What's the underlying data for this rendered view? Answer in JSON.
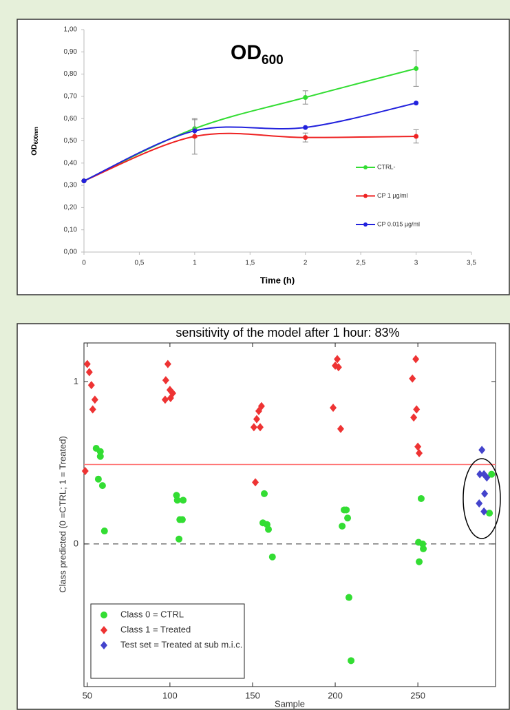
{
  "chart_data": [
    {
      "type": "line",
      "title": "OD",
      "title_subscript": "600",
      "ylabel": "OD",
      "ylabel_subscript": "600nm",
      "xlabel": "Time (h)",
      "x": [
        0,
        1,
        2,
        3
      ],
      "series": [
        {
          "name": "CTRL-",
          "color": "#33dd33",
          "values": [
            0.32,
            0.555,
            0.695,
            0.825
          ],
          "errors": [
            0,
            0.04,
            0.03,
            0.08
          ]
        },
        {
          "name": "CP 1 µg/ml",
          "color": "#ee2222",
          "values": [
            0.32,
            0.52,
            0.515,
            0.52
          ],
          "errors": [
            0,
            0.08,
            0.02,
            0.03
          ]
        },
        {
          "name": "CP 0.015 µg/ml",
          "color": "#2222dd",
          "values": [
            0.32,
            0.545,
            0.56,
            0.67
          ]
        }
      ],
      "xlim": [
        0,
        3.5
      ],
      "xticks": [
        0,
        {
          "value": 0.5,
          "label": "0,5"
        },
        1,
        {
          "value": 1.5,
          "label": "1,5"
        },
        2,
        {
          "value": 2.5,
          "label": "2,5"
        },
        3,
        {
          "value": 3.5,
          "label": "3,5"
        }
      ],
      "ylim": [
        0,
        1
      ],
      "yticks": [
        {
          "value": 0,
          "label": "0,00"
        },
        {
          "value": 0.1,
          "label": "0,10"
        },
        {
          "value": 0.2,
          "label": "0,20"
        },
        {
          "value": 0.3,
          "label": "0,30"
        },
        {
          "value": 0.4,
          "label": "0,40"
        },
        {
          "value": 0.5,
          "label": "0,50"
        },
        {
          "value": 0.6,
          "label": "0,60"
        },
        {
          "value": 0.7,
          "label": "0,70"
        },
        {
          "value": 0.8,
          "label": "0,80"
        },
        {
          "value": 0.9,
          "label": "0,90"
        },
        {
          "value": 1,
          "label": "1,00"
        }
      ],
      "legend": "right",
      "smooth": true
    },
    {
      "type": "scatter",
      "title": "sensitivity  of the model after 1 hour: 83%",
      "xlabel": "Sample",
      "ylabel": "Class predicted (0 =CTRL; 1 = Treated)",
      "series": [
        {
          "name": "Class 0 = CTRL",
          "color": "#33dd33",
          "marker": "circle",
          "x": [
            55.4,
            57.9,
            57.9,
            56.7,
            59.2,
            60.4,
            104,
            104.5,
            108,
            106,
            107.5,
            105.5,
            157.1,
            156.25,
            158.75,
            159.6,
            162,
            206.7,
            205.4,
            207.5,
            204.2,
            208.3,
            209.6,
            252,
            250.4,
            252.9,
            253.3,
            250.8,
            294.6,
            293.3
          ],
          "values": [
            0.59,
            0.57,
            0.54,
            0.4,
            0.36,
            0.08,
            0.3,
            0.27,
            0.27,
            0.15,
            0.15,
            0.03,
            0.31,
            0.13,
            0.12,
            0.09,
            -0.08,
            0.21,
            0.21,
            0.16,
            0.11,
            -0.33,
            -0.72,
            0.28,
            0.01,
            0.0,
            -0.03,
            -0.11,
            0.43,
            0.19
          ]
        },
        {
          "name": "Class 1 = Treated",
          "color": "#ee3333",
          "marker": "diamond",
          "x": [
            50,
            51.25,
            52.5,
            54.6,
            53.3,
            48.75,
            98.75,
            97.5,
            100,
            101.7,
            100.4,
            97.1,
            155.4,
            153.75,
            152.5,
            150.8,
            154.6,
            151.7,
            201.25,
            200,
            202,
            198.75,
            203.3,
            248.75,
            246.7,
            249.2,
            247.5,
            250,
            250.8
          ],
          "values": [
            1.11,
            1.06,
            0.98,
            0.89,
            0.83,
            0.45,
            1.11,
            1.01,
            0.95,
            0.93,
            0.9,
            0.89,
            0.85,
            0.82,
            0.77,
            0.72,
            0.72,
            0.38,
            1.14,
            1.1,
            1.09,
            0.84,
            0.71,
            1.14,
            1.02,
            0.83,
            0.78,
            0.6,
            0.56
          ]
        },
        {
          "name": "Test set = Treated at sub m.i.c.",
          "color": "#4444cc",
          "marker": "diamond",
          "x": [
            288.75,
            287.5,
            290,
            291.7,
            290.4,
            287.1,
            290
          ],
          "values": [
            0.58,
            0.43,
            0.43,
            0.41,
            0.31,
            0.25,
            0.2
          ]
        }
      ],
      "threshold": {
        "value": 0.49,
        "color": "#ff7777"
      },
      "xlim": [
        48,
        297
      ],
      "xticks": [
        50,
        100,
        150,
        200,
        250
      ],
      "ylim": [
        -0.88,
        1.24
      ],
      "yticks": [
        0,
        1
      ],
      "legend": "lower left"
    }
  ]
}
